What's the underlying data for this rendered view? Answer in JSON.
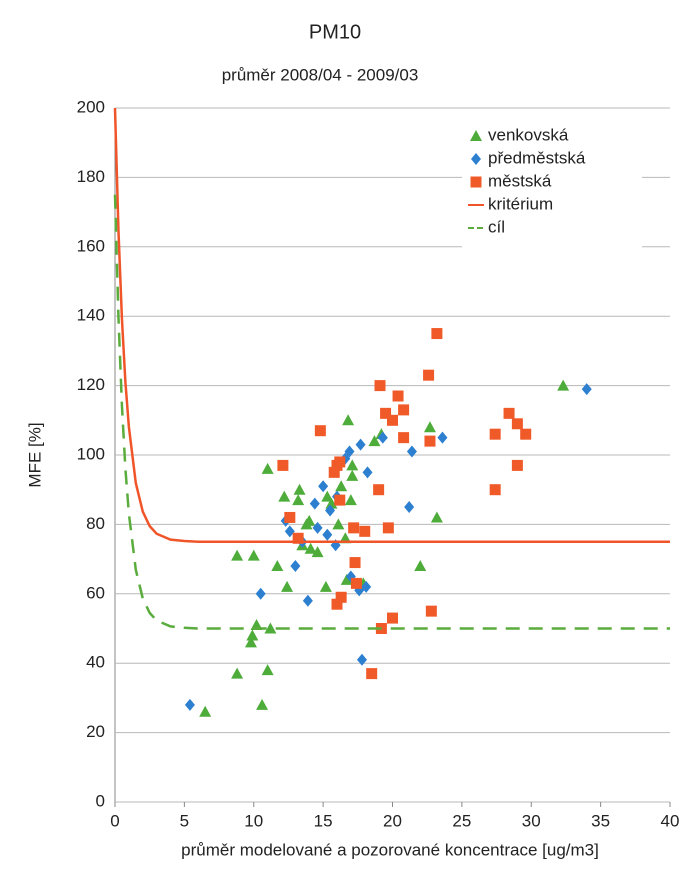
{
  "chart_data": {
    "type": "scatter",
    "title": "PM10",
    "subtitle": "průměr 2008/04 - 2009/03",
    "x_label": "průměr modelované a pozorované koncentrace  [ug/m3]",
    "y_label": "MFE   [%]",
    "xlim": [
      0,
      40
    ],
    "xticks": [
      0,
      5,
      10,
      15,
      20,
      25,
      30,
      35,
      40
    ],
    "ylim": [
      0,
      200
    ],
    "yticks": [
      0,
      20,
      40,
      60,
      80,
      100,
      120,
      140,
      160,
      180,
      200
    ],
    "grid": true,
    "legend": "top-right",
    "series": [
      {
        "name": "venkovská",
        "color": "#4eac3a",
        "marker": "triangle",
        "x": [
          6.5,
          8.8,
          8.8,
          10,
          9.8,
          9.9,
          10.2,
          10.6,
          11,
          11.2,
          11,
          11.7,
          12.2,
          12.4,
          13.3,
          13.2,
          13.5,
          13.8,
          14.1,
          14,
          14.6,
          15.3,
          15.6,
          15.2,
          16.3,
          16.1,
          16.6,
          16.8,
          17.1,
          17,
          17.1,
          18.7,
          19.2,
          22,
          22.7,
          23.2,
          32.3,
          17.9,
          16.7
        ],
        "values": [
          26,
          37,
          71,
          71,
          46,
          48,
          51,
          28,
          38,
          50,
          96,
          68,
          88,
          62,
          90,
          87,
          74,
          80,
          73,
          81,
          72,
          88,
          86,
          62,
          91,
          80,
          76,
          110,
          97,
          87,
          94,
          104,
          106,
          68,
          108,
          82,
          120,
          63,
          64
        ]
      },
      {
        "name": "předměstská",
        "color": "#2d7fd0",
        "marker": "diamond",
        "x": [
          5.4,
          10.5,
          12.6,
          13,
          13.5,
          13.9,
          14.4,
          14.6,
          15,
          15.3,
          15.5,
          15.9,
          16,
          16.6,
          16.9,
          17,
          17.7,
          17.8,
          18.1,
          18.2,
          19.3,
          21.2,
          21.4,
          23.6,
          34,
          12.3,
          17.6
        ],
        "values": [
          28,
          60,
          78,
          68,
          75,
          58,
          86,
          79,
          91,
          77,
          84,
          74,
          88,
          99,
          101,
          65,
          103,
          41,
          62,
          95,
          105,
          85,
          101,
          105,
          119,
          81,
          61
        ]
      },
      {
        "name": "městská",
        "color": "#f05a28",
        "marker": "square",
        "x": [
          12.1,
          12.6,
          13.2,
          14.8,
          15.8,
          16,
          16.2,
          16.3,
          16.2,
          17.2,
          17.4,
          17.3,
          18,
          18.5,
          19,
          19.1,
          19.5,
          19.7,
          19.2,
          20,
          20,
          20.4,
          20.8,
          20.8,
          22.6,
          22.8,
          22.7,
          23.2,
          27.4,
          27.4,
          28.4,
          29,
          29,
          29.6,
          16
        ],
        "values": [
          97,
          82,
          76,
          107,
          95,
          97,
          87,
          59,
          98,
          79,
          63,
          69,
          78,
          37,
          90,
          120,
          112,
          79,
          50,
          53,
          110,
          117,
          105,
          113,
          123,
          55,
          104,
          135,
          106,
          90,
          112,
          109,
          97,
          106,
          57
        ]
      },
      {
        "name": "kritérium",
        "color": "#f0552a",
        "marker": "line",
        "style": "solid",
        "x": [
          0,
          0.25,
          0.5,
          0.75,
          1,
          1.5,
          2,
          2.5,
          3,
          4,
          5,
          6,
          8,
          40
        ],
        "values": [
          200,
          164.6,
          139.2,
          121,
          108.1,
          91.9,
          83.7,
          79.5,
          77.3,
          75.6,
          75.2,
          75,
          75,
          75
        ]
      },
      {
        "name": "cíl",
        "color": "#5aac3c",
        "marker": "line",
        "style": "dashed",
        "x": [
          0,
          0.25,
          0.5,
          0.75,
          1,
          1.5,
          2,
          2.5,
          3,
          4,
          5,
          6,
          8,
          40
        ],
        "values": [
          175,
          139.6,
          114.2,
          96,
          83.1,
          66.9,
          58.7,
          54.5,
          52.3,
          50.6,
          50.2,
          50,
          50,
          50
        ]
      }
    ]
  }
}
